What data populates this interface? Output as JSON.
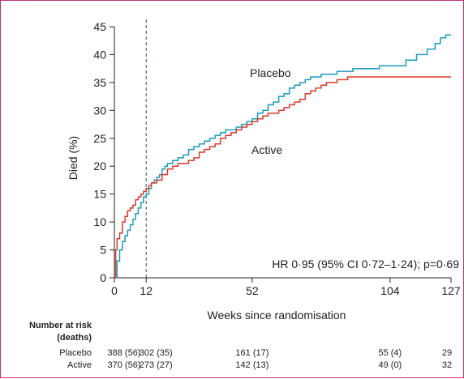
{
  "chart_data": {
    "type": "line",
    "xlabel": "Weeks since randomisation",
    "ylabel": "Died (%)",
    "xlim": [
      0,
      127
    ],
    "ylim": [
      0,
      45
    ],
    "x_ticks": [
      0,
      12,
      52,
      104,
      127
    ],
    "y_ticks": [
      0,
      5,
      10,
      15,
      20,
      25,
      30,
      35,
      40,
      45
    ],
    "reference_line": {
      "x": 12,
      "style": "dashed"
    },
    "grid": false,
    "legend": "none (series labelled directly on the plot)",
    "series": [
      {
        "name": "Placebo",
        "color": "#1a9bbf",
        "step": true,
        "points": [
          [
            0,
            0
          ],
          [
            1,
            3
          ],
          [
            2,
            5
          ],
          [
            3,
            6.5
          ],
          [
            4,
            7.5
          ],
          [
            5,
            8.5
          ],
          [
            6,
            9.5
          ],
          [
            7,
            10.5
          ],
          [
            8,
            11.5
          ],
          [
            9,
            12.5
          ],
          [
            10,
            13.5
          ],
          [
            11,
            14.5
          ],
          [
            12,
            15
          ],
          [
            13,
            16
          ],
          [
            14,
            17
          ],
          [
            15,
            17.5
          ],
          [
            16,
            18
          ],
          [
            17,
            18.5
          ],
          [
            18,
            19.5
          ],
          [
            19,
            20
          ],
          [
            20,
            20.5
          ],
          [
            22,
            21
          ],
          [
            24,
            21.5
          ],
          [
            26,
            22
          ],
          [
            28,
            23
          ],
          [
            30,
            23.5
          ],
          [
            32,
            24
          ],
          [
            34,
            24.5
          ],
          [
            36,
            25
          ],
          [
            38,
            25.5
          ],
          [
            40,
            26
          ],
          [
            42,
            26.5
          ],
          [
            44,
            26.5
          ],
          [
            46,
            27
          ],
          [
            48,
            27.5
          ],
          [
            50,
            28
          ],
          [
            52,
            28.5
          ],
          [
            54,
            29.5
          ],
          [
            56,
            30
          ],
          [
            58,
            31
          ],
          [
            60,
            31.5
          ],
          [
            62,
            32.5
          ],
          [
            64,
            33
          ],
          [
            66,
            34
          ],
          [
            68,
            34.5
          ],
          [
            70,
            35
          ],
          [
            72,
            35.5
          ],
          [
            74,
            36
          ],
          [
            78,
            36.5
          ],
          [
            84,
            37
          ],
          [
            90,
            37.5
          ],
          [
            96,
            37.5
          ],
          [
            100,
            38
          ],
          [
            104,
            38
          ],
          [
            110,
            39
          ],
          [
            114,
            40
          ],
          [
            118,
            41
          ],
          [
            121,
            42
          ],
          [
            123,
            43
          ],
          [
            125,
            43.5
          ],
          [
            127,
            43.5
          ]
        ]
      },
      {
        "name": "Active",
        "color": "#d93b2b",
        "step": true,
        "points": [
          [
            0,
            0
          ],
          [
            0.5,
            5
          ],
          [
            1,
            7
          ],
          [
            2,
            8
          ],
          [
            3,
            10
          ],
          [
            4,
            11
          ],
          [
            5,
            12
          ],
          [
            6,
            12.5
          ],
          [
            7,
            13
          ],
          [
            8,
            14
          ],
          [
            9,
            14.5
          ],
          [
            10,
            15
          ],
          [
            11,
            15.5
          ],
          [
            12,
            16
          ],
          [
            13,
            16.5
          ],
          [
            14,
            17
          ],
          [
            16,
            17.5
          ],
          [
            18,
            18.5
          ],
          [
            20,
            19.5
          ],
          [
            22,
            20
          ],
          [
            24,
            20.5
          ],
          [
            28,
            21
          ],
          [
            30,
            21.5
          ],
          [
            32,
            22.5
          ],
          [
            34,
            23
          ],
          [
            36,
            23.5
          ],
          [
            38,
            24
          ],
          [
            40,
            25
          ],
          [
            42,
            25.5
          ],
          [
            44,
            26
          ],
          [
            46,
            26.5
          ],
          [
            48,
            27
          ],
          [
            50,
            27.5
          ],
          [
            52,
            28
          ],
          [
            54,
            28.5
          ],
          [
            56,
            29
          ],
          [
            58,
            29.5
          ],
          [
            62,
            30
          ],
          [
            64,
            30.5
          ],
          [
            66,
            31
          ],
          [
            68,
            31.5
          ],
          [
            70,
            32
          ],
          [
            72,
            33
          ],
          [
            74,
            33.5
          ],
          [
            76,
            34
          ],
          [
            78,
            34.5
          ],
          [
            80,
            35
          ],
          [
            84,
            35.5
          ],
          [
            88,
            36
          ],
          [
            96,
            36
          ],
          [
            104,
            36
          ],
          [
            127,
            36
          ]
        ]
      }
    ],
    "annotations": {
      "placebo_label": "Placebo",
      "active_label": "Active",
      "hr_text": "HR 0·95 (95% CI 0·72–1·24); p=0·69"
    },
    "number_at_risk": {
      "header_line1": "Number at risk",
      "header_line2": "(deaths)",
      "rows": [
        {
          "label": "Placebo",
          "values": [
            "388 (56)",
            "302 (35)",
            "161 (17)",
            "55 (4)",
            "29"
          ]
        },
        {
          "label": "Active",
          "values": [
            "370 (56)",
            "273 (27)",
            "142 (13)",
            "49 (0)",
            "32"
          ]
        }
      ]
    }
  }
}
